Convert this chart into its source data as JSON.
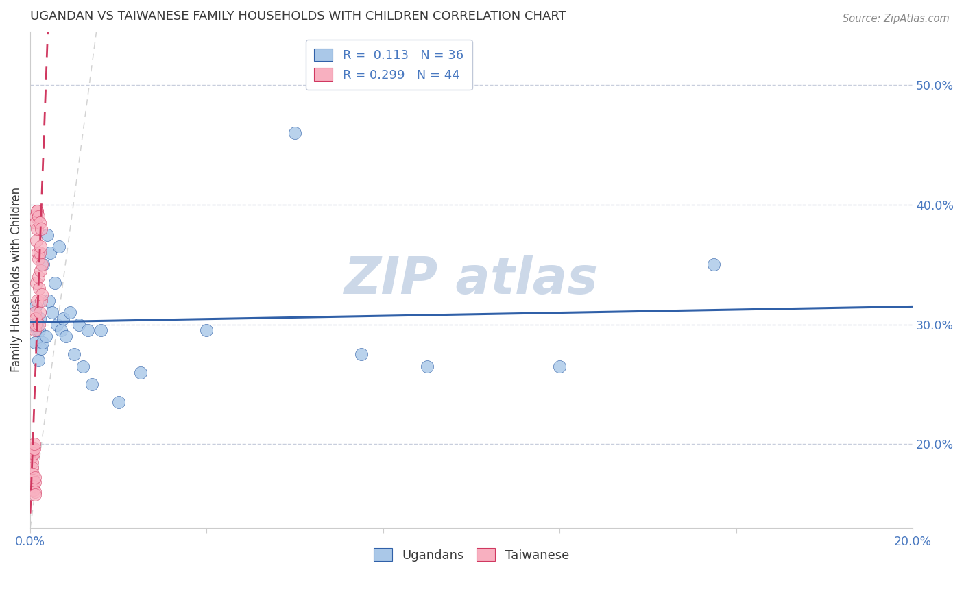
{
  "title": "UGANDAN VS TAIWANESE FAMILY HOUSEHOLDS WITH CHILDREN CORRELATION CHART",
  "source": "Source: ZipAtlas.com",
  "ylabel": "Family Households with Children",
  "xlim": [
    0.0,
    0.2
  ],
  "ylim": [
    0.13,
    0.545
  ],
  "right_ytick_values": [
    0.2,
    0.3,
    0.4,
    0.5
  ],
  "right_ytick_labels": [
    "20.0%",
    "30.0%",
    "40.0%",
    "50.0%"
  ],
  "bottom_xtick_values": [
    0.0,
    0.04,
    0.08,
    0.12,
    0.16,
    0.2
  ],
  "bottom_xtick_labels": [
    "0.0%",
    "",
    "",
    "",
    "",
    "20.0%"
  ],
  "ugandan_R": 0.113,
  "ugandan_N": 36,
  "taiwanese_R": 0.299,
  "taiwanese_N": 44,
  "ugandan_color": "#aac8e8",
  "taiwanese_color": "#f8b0c0",
  "ugandan_line_color": "#3060a8",
  "taiwanese_line_color": "#d03860",
  "watermark_color": "#ccd8e8",
  "background_color": "#ffffff",
  "grid_color": "#c8cedd",
  "title_color": "#3a3a3a",
  "axis_color": "#4878c0",
  "ugandan_x": [
    0.0008,
    0.001,
    0.0012,
    0.0015,
    0.0018,
    0.002,
    0.0022,
    0.0025,
    0.0028,
    0.003,
    0.0035,
    0.0038,
    0.0042,
    0.0045,
    0.005,
    0.0055,
    0.006,
    0.0065,
    0.007,
    0.0075,
    0.008,
    0.009,
    0.01,
    0.011,
    0.012,
    0.013,
    0.014,
    0.016,
    0.02,
    0.025,
    0.04,
    0.06,
    0.075,
    0.09,
    0.12,
    0.155
  ],
  "ugandan_y": [
    0.3,
    0.285,
    0.315,
    0.295,
    0.27,
    0.295,
    0.305,
    0.28,
    0.285,
    0.35,
    0.29,
    0.375,
    0.32,
    0.36,
    0.31,
    0.335,
    0.3,
    0.365,
    0.295,
    0.305,
    0.29,
    0.31,
    0.275,
    0.3,
    0.265,
    0.295,
    0.25,
    0.295,
    0.235,
    0.26,
    0.295,
    0.46,
    0.275,
    0.265,
    0.265,
    0.35
  ],
  "taiwanese_x": [
    0.0005,
    0.0005,
    0.0005,
    0.0005,
    0.0005,
    0.0006,
    0.0006,
    0.0007,
    0.0007,
    0.0008,
    0.0008,
    0.0009,
    0.0009,
    0.001,
    0.001,
    0.001,
    0.001,
    0.0011,
    0.0011,
    0.0012,
    0.0012,
    0.0013,
    0.0013,
    0.0014,
    0.0014,
    0.0015,
    0.0015,
    0.0016,
    0.0016,
    0.0017,
    0.0018,
    0.0018,
    0.0019,
    0.002,
    0.002,
    0.0021,
    0.0021,
    0.0022,
    0.0023,
    0.0023,
    0.0024,
    0.0025,
    0.0026,
    0.0027
  ],
  "taiwanese_y": [
    0.196,
    0.193,
    0.19,
    0.185,
    0.18,
    0.175,
    0.17,
    0.165,
    0.162,
    0.195,
    0.192,
    0.196,
    0.2,
    0.168,
    0.172,
    0.16,
    0.158,
    0.295,
    0.31,
    0.3,
    0.305,
    0.39,
    0.385,
    0.335,
    0.37,
    0.395,
    0.38,
    0.395,
    0.32,
    0.36,
    0.39,
    0.34,
    0.355,
    0.3,
    0.33,
    0.36,
    0.385,
    0.31,
    0.365,
    0.345,
    0.32,
    0.38,
    0.35,
    0.325
  ]
}
